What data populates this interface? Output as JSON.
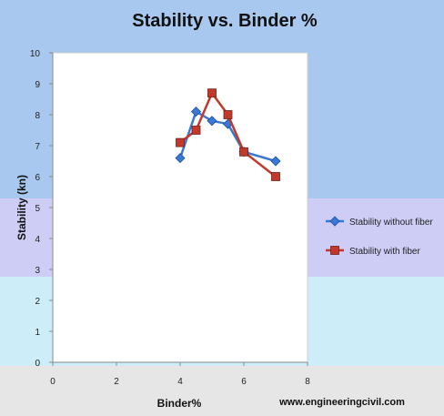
{
  "chart_data": {
    "type": "line",
    "title": "Stability vs. Binder %",
    "xlabel": "Binder%",
    "ylabel": "Stability (kn)",
    "xlim": [
      0,
      8
    ],
    "ylim": [
      0,
      10
    ],
    "x_ticks": [
      "0",
      "2",
      "4",
      "6",
      "8"
    ],
    "y_ticks": [
      "0",
      "1",
      "2",
      "3",
      "4",
      "5",
      "6",
      "7",
      "8",
      "9",
      "10"
    ],
    "grid": false,
    "legend_position": "right",
    "series": [
      {
        "name": "Stability without fiber",
        "color": "#3a78d4",
        "marker": "diamond",
        "x": [
          4.0,
          4.5,
          5.0,
          5.5,
          6.0,
          7.0
        ],
        "y": [
          6.6,
          8.1,
          7.8,
          7.7,
          6.8,
          6.5
        ]
      },
      {
        "name": "Stability with fiber",
        "color": "#c0392b",
        "marker": "square",
        "x": [
          4.0,
          4.5,
          5.0,
          5.5,
          6.0,
          7.0
        ],
        "y": [
          7.1,
          7.5,
          8.7,
          8.0,
          6.8,
          6.0
        ]
      }
    ]
  },
  "watermark": "www.engineeringcivil.com",
  "colors": {
    "band_top": "#a8c8ef",
    "band_middle": "#cdcdf5",
    "band_lower": "#cdeef8",
    "band_bottom": "#e6e6e6",
    "plot_area": "#ffffff"
  }
}
